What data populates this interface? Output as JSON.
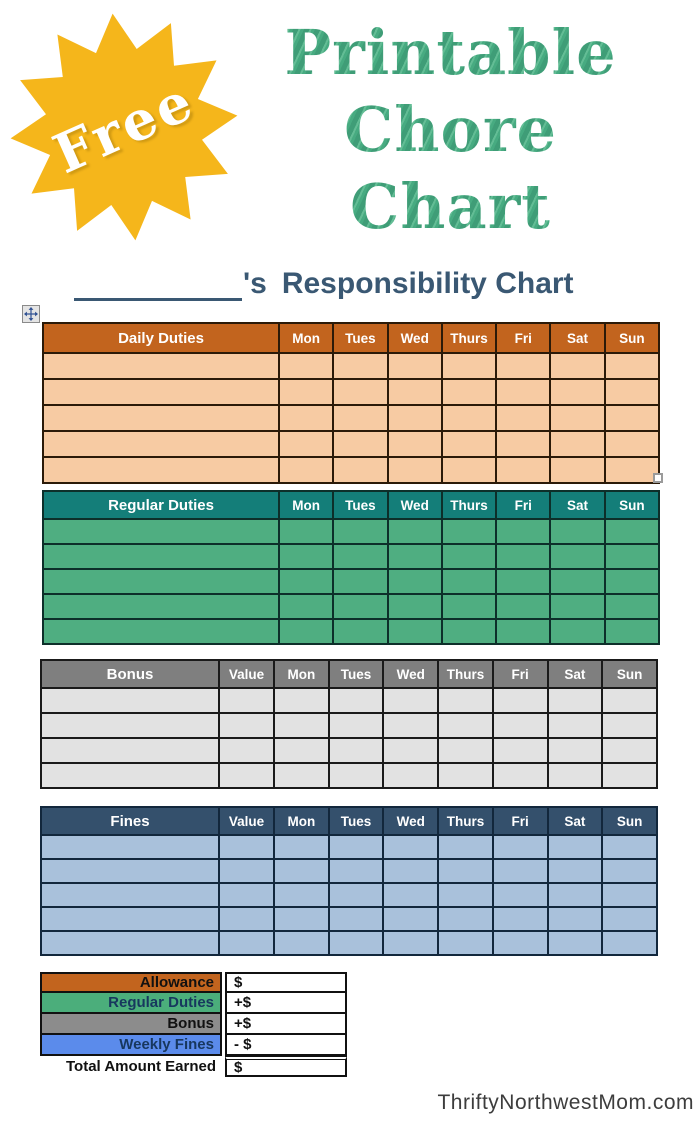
{
  "badge": {
    "label": "Free",
    "star_color": "#f5b61b"
  },
  "title": {
    "lines": [
      "Printable",
      "Chore",
      "Chart"
    ],
    "color": "#4dae87"
  },
  "heading": {
    "suffix": "'s",
    "title": "Responsibility Chart",
    "color": "#3a5873"
  },
  "days": [
    "Mon",
    "Tues",
    "Wed",
    "Thurs",
    "Fri",
    "Sat",
    "Sun"
  ],
  "tables": [
    {
      "id": "daily",
      "label": "Daily Duties",
      "value_label": null,
      "rows": 5,
      "header_bg": "#c2641e",
      "body_bg": "#f7cba3",
      "border": "#2b1a08"
    },
    {
      "id": "regular",
      "label": "Regular Duties",
      "value_label": null,
      "rows": 5,
      "header_bg": "#147e79",
      "body_bg": "#4fae81",
      "border": "#0d2f2a"
    },
    {
      "id": "bonus",
      "label": "Bonus",
      "value_label": "Value",
      "rows": 4,
      "header_bg": "#7f7f7f",
      "body_bg": "#e2e2e2",
      "border": "#1a1a1a"
    },
    {
      "id": "fines",
      "label": "Fines",
      "value_label": "Value",
      "rows": 5,
      "header_bg": "#34506c",
      "body_bg": "#a9c1db",
      "border": "#12273c"
    }
  ],
  "summary": {
    "rows": [
      {
        "label": "Allowance",
        "value": "$",
        "bg": "#c2641e",
        "label_color": "#111111",
        "total": false
      },
      {
        "label": "Regular Duties",
        "value": "+$",
        "bg": "#4bae7b",
        "label_color": "#17375e",
        "total": false
      },
      {
        "label": "Bonus",
        "value": "+$",
        "bg": "#8c8c8c",
        "label_color": "#111111",
        "total": false
      },
      {
        "label": "Weekly Fines",
        "value": "- $",
        "bg": "#5b8beb",
        "label_color": "#17375e",
        "total": false
      },
      {
        "label": "Total Amount Earned",
        "value": "$",
        "bg": null,
        "label_color": "#111111",
        "total": true
      }
    ]
  },
  "footer": {
    "watermark": "ThriftyNorthwestMom.com"
  }
}
